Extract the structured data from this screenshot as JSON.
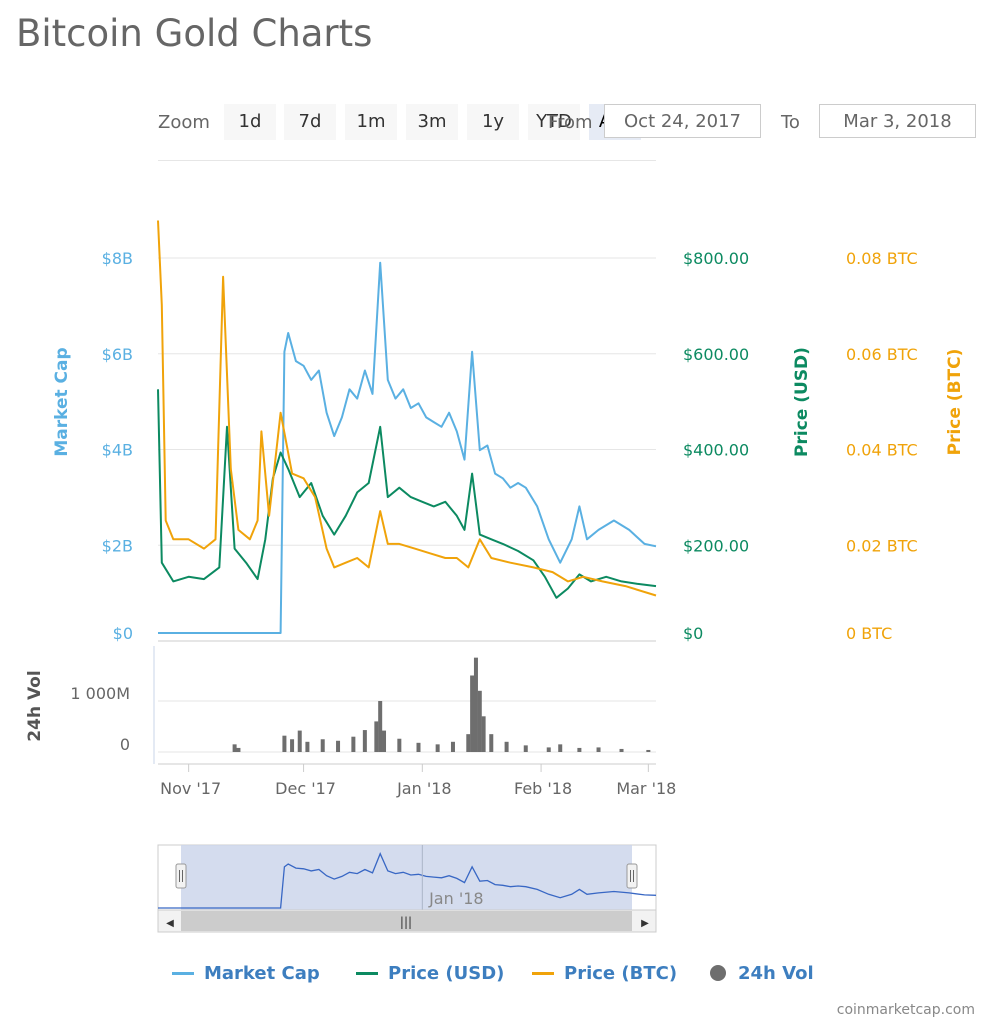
{
  "page": {
    "title": "Bitcoin Gold Charts",
    "credits": "coinmarketcap.com"
  },
  "toolbar": {
    "zoom_label": "Zoom",
    "buttons": [
      "1d",
      "7d",
      "1m",
      "3m",
      "1y",
      "YTD",
      "ALL"
    ],
    "active": "ALL",
    "from_label": "From",
    "from_value": "Oct 24, 2017",
    "to_label": "To",
    "to_value": "Mar 3, 2018"
  },
  "colors": {
    "market_cap": "#5ab0e2",
    "price_usd": "#0c8a61",
    "price_btc": "#f0a30a",
    "volume": "#6e6e6e",
    "grid": "#e6e6e6",
    "navigator_fill": "#ccd6eb",
    "navigator_line": "#3867c4"
  },
  "legend": [
    {
      "name": "Market Cap",
      "color": "#5ab0e2",
      "symbol": "line"
    },
    {
      "name": "Price (USD)",
      "color": "#0c8a61",
      "symbol": "line"
    },
    {
      "name": "Price (BTC)",
      "color": "#f0a30a",
      "symbol": "line"
    },
    {
      "name": "24h Vol",
      "color": "#6e6e6e",
      "symbol": "dot"
    }
  ],
  "chart_data": {
    "type": "line",
    "x_start": "2017-10-24",
    "x_end": "2018-03-03",
    "x_ticks": [
      "Nov '17",
      "Dec '17",
      "Jan '18",
      "Feb '18",
      "Mar '18"
    ],
    "axes": {
      "market_cap": {
        "title": "Market Cap",
        "ticks": [
          "$0",
          "$2B",
          "$4B",
          "$6B",
          "$8B"
        ],
        "min": 0,
        "max": 8
      },
      "price_usd": {
        "title": "Price (USD)",
        "ticks": [
          "$0",
          "$200.00",
          "$400.00",
          "$600.00",
          "$800.00"
        ],
        "min": 0,
        "max": 800
      },
      "price_btc": {
        "title": "Price (BTC)",
        "ticks": [
          "0 BTC",
          "0.02 BTC",
          "0.04 BTC",
          "0.06 BTC",
          "0.08 BTC"
        ],
        "min": 0,
        "max": 0.08
      },
      "volume": {
        "title": "24h Vol",
        "ticks": [
          "0",
          "1 000M"
        ],
        "min": 0,
        "max": 2000
      }
    },
    "series": [
      {
        "name": "Market Cap",
        "unit": "B USD",
        "points": [
          [
            "2017-10-24",
            0
          ],
          [
            "2017-11-01",
            0
          ],
          [
            "2017-11-10",
            0
          ],
          [
            "2017-11-20",
            0
          ],
          [
            "2017-11-25",
            0
          ],
          [
            "2017-11-26",
            6.0
          ],
          [
            "2017-11-27",
            6.4
          ],
          [
            "2017-11-29",
            5.8
          ],
          [
            "2017-12-01",
            5.7
          ],
          [
            "2017-12-03",
            5.4
          ],
          [
            "2017-12-05",
            5.6
          ],
          [
            "2017-12-07",
            4.7
          ],
          [
            "2017-12-09",
            4.2
          ],
          [
            "2017-12-11",
            4.6
          ],
          [
            "2017-12-13",
            5.2
          ],
          [
            "2017-12-15",
            5.0
          ],
          [
            "2017-12-17",
            5.6
          ],
          [
            "2017-12-19",
            5.1
          ],
          [
            "2017-12-21",
            7.9
          ],
          [
            "2017-12-23",
            5.4
          ],
          [
            "2017-12-25",
            5.0
          ],
          [
            "2017-12-27",
            5.2
          ],
          [
            "2017-12-29",
            4.8
          ],
          [
            "2017-12-31",
            4.9
          ],
          [
            "2018-01-02",
            4.6
          ],
          [
            "2018-01-04",
            4.5
          ],
          [
            "2018-01-06",
            4.4
          ],
          [
            "2018-01-08",
            4.7
          ],
          [
            "2018-01-10",
            4.3
          ],
          [
            "2018-01-12",
            3.7
          ],
          [
            "2018-01-14",
            6.0
          ],
          [
            "2018-01-16",
            3.9
          ],
          [
            "2018-01-18",
            4.0
          ],
          [
            "2018-01-20",
            3.4
          ],
          [
            "2018-01-22",
            3.3
          ],
          [
            "2018-01-24",
            3.1
          ],
          [
            "2018-01-26",
            3.2
          ],
          [
            "2018-01-28",
            3.1
          ],
          [
            "2018-01-31",
            2.7
          ],
          [
            "2018-02-03",
            2.0
          ],
          [
            "2018-02-06",
            1.5
          ],
          [
            "2018-02-09",
            2.0
          ],
          [
            "2018-02-11",
            2.7
          ],
          [
            "2018-02-13",
            2.0
          ],
          [
            "2018-02-16",
            2.2
          ],
          [
            "2018-02-20",
            2.4
          ],
          [
            "2018-02-24",
            2.2
          ],
          [
            "2018-02-28",
            1.9
          ],
          [
            "2018-03-03",
            1.85
          ]
        ]
      },
      {
        "name": "Price (USD)",
        "unit": "USD",
        "points": [
          [
            "2017-10-24",
            520
          ],
          [
            "2017-10-25",
            150
          ],
          [
            "2017-10-28",
            110
          ],
          [
            "2017-11-01",
            120
          ],
          [
            "2017-11-05",
            115
          ],
          [
            "2017-11-09",
            140
          ],
          [
            "2017-11-11",
            440
          ],
          [
            "2017-11-13",
            180
          ],
          [
            "2017-11-16",
            150
          ],
          [
            "2017-11-19",
            115
          ],
          [
            "2017-11-21",
            200
          ],
          [
            "2017-11-23",
            330
          ],
          [
            "2017-11-25",
            385
          ],
          [
            "2017-11-27",
            350
          ],
          [
            "2017-11-30",
            290
          ],
          [
            "2017-12-03",
            320
          ],
          [
            "2017-12-06",
            250
          ],
          [
            "2017-12-09",
            210
          ],
          [
            "2017-12-12",
            250
          ],
          [
            "2017-12-15",
            300
          ],
          [
            "2017-12-18",
            320
          ],
          [
            "2017-12-21",
            440
          ],
          [
            "2017-12-23",
            290
          ],
          [
            "2017-12-26",
            310
          ],
          [
            "2017-12-29",
            290
          ],
          [
            "2018-01-01",
            280
          ],
          [
            "2018-01-04",
            270
          ],
          [
            "2018-01-07",
            280
          ],
          [
            "2018-01-10",
            250
          ],
          [
            "2018-01-12",
            220
          ],
          [
            "2018-01-14",
            340
          ],
          [
            "2018-01-16",
            210
          ],
          [
            "2018-01-19",
            200
          ],
          [
            "2018-01-22",
            190
          ],
          [
            "2018-01-26",
            175
          ],
          [
            "2018-01-30",
            155
          ],
          [
            "2018-02-02",
            120
          ],
          [
            "2018-02-05",
            75
          ],
          [
            "2018-02-08",
            95
          ],
          [
            "2018-02-11",
            125
          ],
          [
            "2018-02-14",
            110
          ],
          [
            "2018-02-18",
            120
          ],
          [
            "2018-02-22",
            110
          ],
          [
            "2018-02-26",
            105
          ],
          [
            "2018-03-03",
            100
          ]
        ]
      },
      {
        "name": "Price (BTC)",
        "unit": "BTC",
        "points": [
          [
            "2017-10-24",
            0.088
          ],
          [
            "2017-10-25",
            0.07
          ],
          [
            "2017-10-26",
            0.024
          ],
          [
            "2017-10-28",
            0.02
          ],
          [
            "2017-11-01",
            0.02
          ],
          [
            "2017-11-05",
            0.018
          ],
          [
            "2017-11-08",
            0.02
          ],
          [
            "2017-11-10",
            0.076
          ],
          [
            "2017-11-12",
            0.035
          ],
          [
            "2017-11-14",
            0.022
          ],
          [
            "2017-11-17",
            0.02
          ],
          [
            "2017-11-19",
            0.024
          ],
          [
            "2017-11-20",
            0.043
          ],
          [
            "2017-11-22",
            0.025
          ],
          [
            "2017-11-25",
            0.047
          ],
          [
            "2017-11-28",
            0.034
          ],
          [
            "2017-12-01",
            0.033
          ],
          [
            "2017-12-04",
            0.029
          ],
          [
            "2017-12-07",
            0.018
          ],
          [
            "2017-12-09",
            0.014
          ],
          [
            "2017-12-12",
            0.015
          ],
          [
            "2017-12-15",
            0.016
          ],
          [
            "2017-12-18",
            0.014
          ],
          [
            "2017-12-21",
            0.026
          ],
          [
            "2017-12-23",
            0.019
          ],
          [
            "2017-12-26",
            0.019
          ],
          [
            "2017-12-30",
            0.018
          ],
          [
            "2018-01-03",
            0.017
          ],
          [
            "2018-01-07",
            0.016
          ],
          [
            "2018-01-10",
            0.016
          ],
          [
            "2018-01-13",
            0.014
          ],
          [
            "2018-01-16",
            0.02
          ],
          [
            "2018-01-19",
            0.016
          ],
          [
            "2018-01-24",
            0.015
          ],
          [
            "2018-01-30",
            0.014
          ],
          [
            "2018-02-04",
            0.013
          ],
          [
            "2018-02-08",
            0.011
          ],
          [
            "2018-02-12",
            0.012
          ],
          [
            "2018-02-17",
            0.011
          ],
          [
            "2018-02-23",
            0.01
          ],
          [
            "2018-03-03",
            0.008
          ]
        ]
      },
      {
        "name": "24h Vol",
        "unit": "M USD",
        "points": [
          [
            "2017-11-13",
            150
          ],
          [
            "2017-11-14",
            80
          ],
          [
            "2017-11-26",
            320
          ],
          [
            "2017-11-28",
            250
          ],
          [
            "2017-11-30",
            420
          ],
          [
            "2017-12-02",
            200
          ],
          [
            "2017-12-06",
            250
          ],
          [
            "2017-12-10",
            220
          ],
          [
            "2017-12-14",
            300
          ],
          [
            "2017-12-17",
            430
          ],
          [
            "2017-12-20",
            600
          ],
          [
            "2017-12-21",
            1000
          ],
          [
            "2017-12-22",
            420
          ],
          [
            "2017-12-26",
            260
          ],
          [
            "2017-12-31",
            180
          ],
          [
            "2018-01-05",
            150
          ],
          [
            "2018-01-09",
            200
          ],
          [
            "2018-01-13",
            350
          ],
          [
            "2018-01-14",
            1500
          ],
          [
            "2018-01-15",
            1850
          ],
          [
            "2018-01-16",
            1200
          ],
          [
            "2018-01-17",
            700
          ],
          [
            "2018-01-19",
            350
          ],
          [
            "2018-01-23",
            200
          ],
          [
            "2018-01-28",
            130
          ],
          [
            "2018-02-03",
            90
          ],
          [
            "2018-02-06",
            150
          ],
          [
            "2018-02-11",
            80
          ],
          [
            "2018-02-16",
            90
          ],
          [
            "2018-02-22",
            60
          ],
          [
            "2018-03-01",
            40
          ]
        ]
      }
    ]
  },
  "navigator": {
    "tick": "Jan '18",
    "handle_glyph": "|||",
    "left_arrow": "◀",
    "right_arrow": "▶"
  }
}
